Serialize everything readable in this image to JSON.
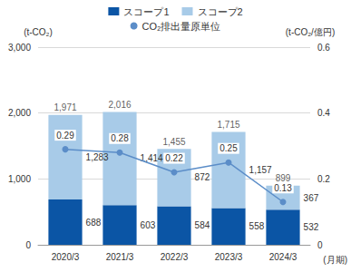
{
  "chart_data": {
    "type": "bar",
    "stacked": true,
    "data_labels": true,
    "grid": true,
    "legend": "top",
    "categories": [
      "2020/3",
      "2021/3",
      "2022/3",
      "2023/3",
      "2024/3"
    ],
    "series": [
      {
        "name": "スコープ1",
        "type": "bar",
        "color": "#0b55a5",
        "values": [
          688,
          603,
          584,
          558,
          532
        ]
      },
      {
        "name": "スコープ2",
        "type": "bar",
        "color": "#a8cbe8",
        "values": [
          1283,
          1414,
          872,
          1157,
          367
        ],
        "value_labels": [
          "1,283",
          "1,414",
          "872",
          "1,157",
          "367"
        ]
      },
      {
        "name": "CO₂排出量原単位",
        "type": "line",
        "axis": "y2",
        "color": "#5b8dc8",
        "marker": "circle",
        "values": [
          0.29,
          0.28,
          0.22,
          0.25,
          0.13
        ]
      }
    ],
    "totals": [
      1971,
      2016,
      1455,
      1715,
      899
    ],
    "total_labels": [
      "1,971",
      "2,016",
      "1,455",
      "1,715",
      "899"
    ],
    "ylabel": "(t-CO₂)",
    "y2label": "(t-CO₂/億円)",
    "xlabel": "(月期)",
    "ylim": [
      0,
      3000
    ],
    "yticks": [
      0,
      {
        "value": 1000,
        "label": "1,000"
      },
      {
        "value": 2000,
        "label": "2,000"
      },
      {
        "value": 3000,
        "label": "3,000"
      }
    ],
    "y2lim": [
      0,
      0.6
    ],
    "y2ticks": [
      0,
      0.2,
      0.4,
      0.6
    ]
  }
}
